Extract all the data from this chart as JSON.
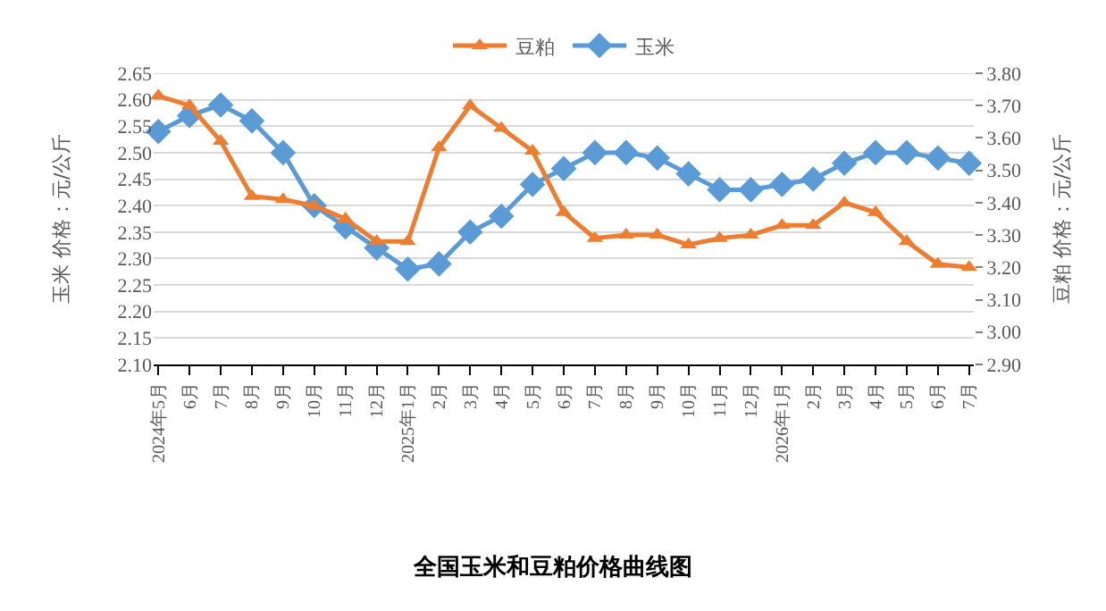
{
  "chart_data": {
    "type": "line",
    "title": "全国玉米和豆粕价格曲线图",
    "ylabel": "玉米 价格：元/公斤",
    "y2label": "豆粕 价格：元/公斤",
    "categories": [
      "2024年5月",
      "6月",
      "7月",
      "8月",
      "9月",
      "10月",
      "11月",
      "12月",
      "2025年1月",
      "2月",
      "3月",
      "4月",
      "5月",
      "6月",
      "7月",
      "8月",
      "9月",
      "10月",
      "11月",
      "12月",
      "2026年1月",
      "2月",
      "3月",
      "4月",
      "5月",
      "6月",
      "7月"
    ],
    "series": [
      {
        "name": "豆粕",
        "color": "#ed7d31",
        "axis": "y2",
        "marker": "triangle",
        "values": [
          3.73,
          3.7,
          3.59,
          3.42,
          3.41,
          3.39,
          3.35,
          3.28,
          3.28,
          3.57,
          3.7,
          3.63,
          3.56,
          3.37,
          3.29,
          3.3,
          3.3,
          3.27,
          3.29,
          3.3,
          3.33,
          3.33,
          3.4,
          3.37,
          3.28,
          3.21,
          3.2
        ]
      },
      {
        "name": "玉米",
        "color": "#5b9bd5",
        "marker": "diamond",
        "values": [
          2.54,
          2.57,
          2.59,
          2.56,
          2.5,
          2.4,
          2.36,
          2.32,
          2.28,
          2.29,
          2.35,
          2.38,
          2.44,
          2.47,
          2.5,
          2.5,
          2.49,
          2.46,
          2.43,
          2.43,
          2.44,
          2.45,
          2.48,
          2.5,
          2.5,
          2.49,
          2.48
        ]
      }
    ],
    "ylim": [
      2.1,
      2.65
    ],
    "yticks": [
      {
        "value": 2.1,
        "label": "2.10"
      },
      2.15,
      {
        "value": 2.2,
        "label": "2.20"
      },
      2.25,
      {
        "value": 2.3,
        "label": "2.30"
      },
      2.35,
      {
        "value": 2.4,
        "label": "2.40"
      },
      2.45,
      {
        "value": 2.5,
        "label": "2.50"
      },
      2.55,
      {
        "value": 2.6,
        "label": "2.60"
      },
      2.65
    ],
    "y2lim": [
      2.9,
      3.8
    ],
    "y2ticks": [
      {
        "value": 2.9,
        "label": "2.90"
      },
      {
        "value": 3.0,
        "label": "3.00"
      },
      {
        "value": 3.1,
        "label": "3.10"
      },
      {
        "value": 3.2,
        "label": "3.20"
      },
      {
        "value": 3.3,
        "label": "3.30"
      },
      {
        "value": 3.4,
        "label": "3.40"
      },
      {
        "value": 3.5,
        "label": "3.50"
      },
      {
        "value": 3.6,
        "label": "3.60"
      },
      {
        "value": 3.7,
        "label": "3.70"
      },
      {
        "value": 3.8,
        "label": "3.80"
      }
    ],
    "grid": "y",
    "legend": "top",
    "line_style": "solid"
  }
}
